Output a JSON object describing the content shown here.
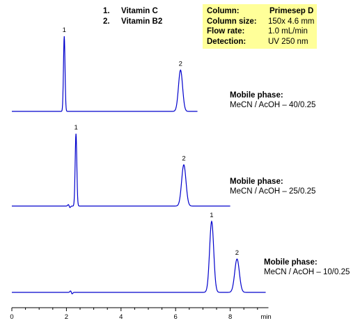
{
  "legend": [
    {
      "num": "1.",
      "name": "Vitamin C"
    },
    {
      "num": "2.",
      "name": "Vitamin B2"
    }
  ],
  "conditions": [
    {
      "label": "Column:",
      "value": "Primesep  D"
    },
    {
      "label": "Column size:",
      "value": "150x 4.6  mm"
    },
    {
      "label": "Flow rate:",
      "value": "1.0 mL/min"
    },
    {
      "label": "Detection:",
      "value": "UV 250 nm"
    }
  ],
  "colors": {
    "trace": "#0000cc",
    "conditions_box": "#ffff99"
  },
  "chart_data": {
    "type": "line",
    "title": "",
    "xlabel": "min",
    "ylabel": "",
    "xlim": [
      0,
      9.4
    ],
    "x_ticks": [
      0,
      2,
      4,
      6,
      8
    ],
    "x_tick_labels": [
      "0",
      "2",
      "4",
      "6",
      "8"
    ],
    "x_unit": "min",
    "grid": false,
    "chromatograms": [
      {
        "mobile_phase_label": "Mobile phase:",
        "mobile_phase": "MeCN / AcOH – 40/0.25",
        "run_end_min": 6.8,
        "peaks": [
          {
            "label": "1",
            "compound": "Vitamin C",
            "retention_min": 1.92,
            "relative_height": 1.0
          },
          {
            "label": "2",
            "compound": "Vitamin B2",
            "retention_min": 6.18,
            "relative_height": 0.55
          }
        ]
      },
      {
        "mobile_phase_label": "Mobile phase:",
        "mobile_phase": "MeCN / AcOH – 25/0.25",
        "run_end_min": 8.0,
        "peaks": [
          {
            "label": "1",
            "compound": "Vitamin C",
            "retention_min": 2.35,
            "relative_height": 1.0
          },
          {
            "label": "2",
            "compound": "Vitamin B2",
            "retention_min": 6.3,
            "relative_height": 0.57
          }
        ]
      },
      {
        "mobile_phase_label": "Mobile phase:",
        "mobile_phase": "MeCN / AcOH – 10/0.25",
        "run_end_min": 9.3,
        "peaks": [
          {
            "label": "1",
            "compound": "Vitamin C",
            "retention_min": 7.32,
            "relative_height": 1.0
          },
          {
            "label": "2",
            "compound": "Vitamin B2",
            "retention_min": 8.25,
            "relative_height": 0.47
          }
        ]
      }
    ]
  }
}
